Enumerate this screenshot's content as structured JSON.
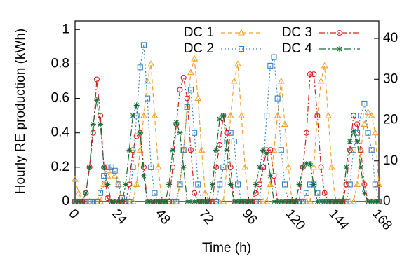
{
  "chart_data": {
    "type": "line",
    "x_label": "Time (h)",
    "y_label": "Hourly RE production (kWh)",
    "x": [
      0,
      2,
      4,
      6,
      8,
      10,
      12,
      14,
      16,
      18,
      20,
      22,
      24,
      26,
      28,
      30,
      32,
      34,
      36,
      38,
      40,
      42,
      44,
      46,
      48,
      50,
      52,
      54,
      56,
      58,
      60,
      62,
      64,
      66,
      68,
      70,
      72,
      74,
      76,
      78,
      80,
      82,
      84,
      86,
      88,
      90,
      92,
      94,
      96,
      98,
      100,
      102,
      104,
      106,
      108,
      110,
      112,
      114,
      116,
      118,
      120,
      122,
      124,
      126,
      128,
      130,
      132,
      134,
      136,
      138,
      140,
      142,
      144,
      146,
      148,
      150,
      152,
      154,
      156,
      158,
      160,
      162,
      164,
      166,
      168
    ],
    "series": [
      {
        "name": "DC 1",
        "color": "#f0a030",
        "marker": "triangle",
        "dash": "6,4",
        "values": [
          0.13,
          0.05,
          0,
          0,
          0,
          0,
          0,
          0,
          0.1,
          0.15,
          0.18,
          0.15,
          0.1,
          0,
          0,
          0,
          0,
          0.1,
          0.3,
          0.5,
          0.7,
          0.8,
          0.5,
          0.2,
          0,
          0,
          0,
          0,
          0,
          0.1,
          0.3,
          0.55,
          0.75,
          0.83,
          0.6,
          0.3,
          0.05,
          0,
          0,
          0,
          0,
          0,
          0.2,
          0.5,
          0.7,
          0.8,
          0.5,
          0.2,
          0,
          0,
          0,
          0,
          0,
          0,
          0.1,
          0.3,
          0.5,
          0.7,
          0.45,
          0.2,
          0,
          0,
          0,
          0,
          0,
          0,
          0.2,
          0.5,
          0.7,
          0.79,
          0.5,
          0.2,
          0,
          0,
          0,
          0,
          0,
          0,
          0.1,
          0.3,
          0.45,
          0.52,
          0.5,
          0.4,
          0.1
        ]
      },
      {
        "name": "DC 2",
        "color": "#3a80c0",
        "marker": "square",
        "dash": "2,3",
        "values": [
          0,
          0,
          0,
          0,
          0,
          0,
          0,
          0.05,
          0.15,
          0.2,
          0.2,
          0.18,
          0.1,
          0.02,
          0,
          0,
          0.2,
          0.5,
          0.78,
          0.91,
          0.6,
          0.2,
          0.05,
          0,
          0,
          0,
          0,
          0,
          0,
          0.1,
          0.3,
          0.55,
          0.65,
          0.4,
          0.1,
          0,
          0,
          0,
          0,
          0,
          0.1,
          0.2,
          0.35,
          0.4,
          0.35,
          0.1,
          0,
          0,
          0,
          0,
          0,
          0,
          0.2,
          0.5,
          0.79,
          0.84,
          0.6,
          0.3,
          0.1,
          0,
          0,
          0,
          0,
          0,
          0.05,
          0.1,
          0.1,
          0.05,
          0,
          0,
          0,
          0,
          0,
          0,
          0,
          0,
          0.1,
          0.3,
          0.4,
          0.5,
          0.57,
          0.4,
          0.3,
          0.1,
          0
        ]
      },
      {
        "name": "DC 3",
        "color": "#d02020",
        "marker": "circle",
        "dash": "8,3,2,3",
        "values": [
          0,
          0,
          0,
          0.05,
          0.2,
          0.4,
          0.71,
          0.5,
          0.2,
          0.02,
          0,
          0,
          0,
          0,
          0,
          0.1,
          0.3,
          0.38,
          0.4,
          0.2,
          0,
          0,
          0,
          0,
          0,
          0,
          0,
          0.2,
          0.45,
          0.65,
          0.72,
          0.6,
          0.3,
          0.05,
          0,
          0,
          0,
          0,
          0,
          0.2,
          0.33,
          0.5,
          0.4,
          0.2,
          0,
          0,
          0,
          0,
          0,
          0,
          0.05,
          0.1,
          0.2,
          0.3,
          0.3,
          0.15,
          0,
          0,
          0,
          0,
          0,
          0,
          0,
          0.2,
          0.4,
          0.74,
          0.74,
          0.5,
          0.2,
          0.05,
          0,
          0,
          0,
          0,
          0,
          0.1,
          0.3,
          0.5,
          0.45,
          0.3,
          0.1,
          0,
          0,
          0,
          0
        ]
      },
      {
        "name": "DC 4",
        "color": "#1a6b3a",
        "marker": "star",
        "dash": "10,3,2,3",
        "values": [
          0,
          0,
          0,
          0.05,
          0.2,
          0.45,
          0.59,
          0.45,
          0.2,
          0.1,
          0,
          0,
          0,
          0,
          0.1,
          0.3,
          0.5,
          0.56,
          0.4,
          0.15,
          0,
          0,
          0,
          0,
          0,
          0,
          0.1,
          0.3,
          0.46,
          0.4,
          0.2,
          0,
          0,
          0,
          0,
          0,
          0,
          0,
          0.1,
          0.3,
          0.48,
          0.5,
          0.3,
          0.1,
          0,
          0,
          0,
          0,
          0,
          0,
          0.1,
          0.2,
          0.3,
          0.28,
          0.15,
          0,
          0,
          0,
          0,
          0,
          0,
          0,
          0.1,
          0.2,
          0.22,
          0.22,
          0.1,
          0,
          0,
          0,
          0,
          0,
          0,
          0,
          0,
          0.2,
          0.35,
          0.41,
          0.35,
          0.2,
          0.05,
          0,
          0,
          0,
          0
        ]
      }
    ],
    "xlim": [
      0,
      168
    ],
    "xticks": [
      0,
      24,
      48,
      72,
      96,
      120,
      144,
      168
    ],
    "ylim": [
      0,
      1.05
    ],
    "yticks": [
      0,
      0.2,
      0.4,
      0.6,
      0.8,
      1
    ],
    "y2lim": [
      0,
      44.3
    ],
    "y2ticks": [
      0,
      10,
      20,
      30,
      40
    ]
  }
}
